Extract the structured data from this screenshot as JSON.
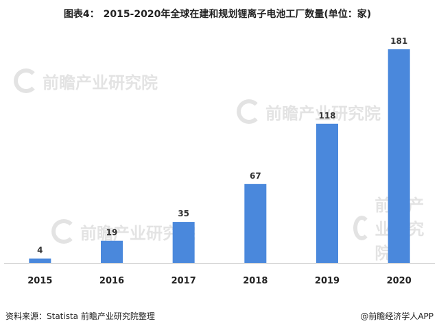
{
  "header": {
    "fig_no": "图表4：",
    "title_text": "2015-2020年全球在建和规划锂离子电池工厂数量(单位：家)"
  },
  "watermark": {
    "text": "前瞻产业研究院"
  },
  "footer": {
    "source": "资料来源：Statista 前瞻产业研究院整理",
    "credit": "@前瞻经济学人APP"
  },
  "colors": {
    "bar": "#4a88dc",
    "axis": "#c8c8c8"
  },
  "chart_data": {
    "type": "bar",
    "title": "2015-2020年全球在建和规划锂离子电池工厂数量(单位：家)",
    "categories": [
      "2015",
      "2016",
      "2017",
      "2018",
      "2019",
      "2020"
    ],
    "values": [
      4,
      19,
      35,
      67,
      118,
      181
    ],
    "ylim": [
      0,
      181
    ],
    "grid": false,
    "legend": "none"
  }
}
